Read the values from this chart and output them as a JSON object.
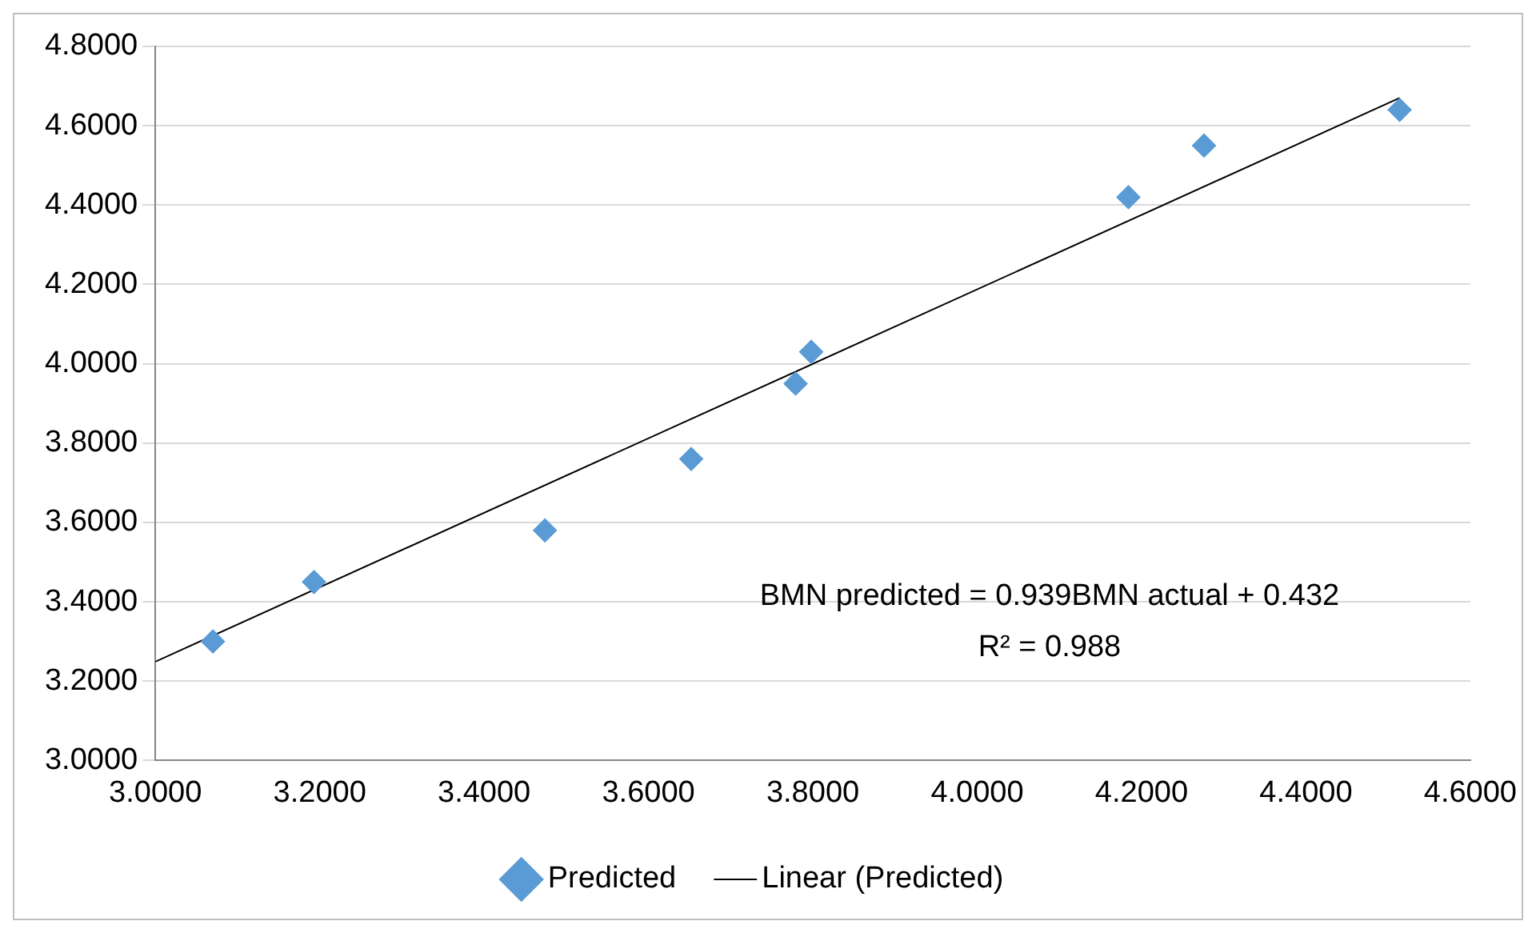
{
  "chart_data": {
    "type": "scatter",
    "x": [
      3.07,
      3.193,
      3.474,
      3.652,
      3.779,
      3.798,
      4.184,
      4.276,
      4.514
    ],
    "series": [
      {
        "name": "Predicted",
        "color": "#5b9bd5",
        "marker": "diamond",
        "values": [
          3.3,
          3.45,
          3.58,
          3.76,
          3.95,
          4.03,
          4.42,
          4.55,
          4.64
        ]
      },
      {
        "name": "Linear (Predicted)",
        "type": "line",
        "color": "#000000",
        "marker": "none",
        "line_style": "solid",
        "x": [
          3.0,
          4.514
        ],
        "values": [
          3.249,
          4.67
        ]
      }
    ],
    "xlim": [
      3.0,
      4.6
    ],
    "xticks": [
      {
        "value": 3.0,
        "label": "3.0000"
      },
      {
        "value": 3.2,
        "label": "3.2000"
      },
      {
        "value": 3.4,
        "label": "3.4000"
      },
      {
        "value": 3.6,
        "label": "3.6000"
      },
      {
        "value": 3.8,
        "label": "3.8000"
      },
      {
        "value": 4.0,
        "label": "4.0000"
      },
      {
        "value": 4.2,
        "label": "4.2000"
      },
      {
        "value": 4.4,
        "label": "4.4000"
      },
      {
        "value": 4.6,
        "label": "4.6000"
      }
    ],
    "ylim": [
      3.0,
      4.8
    ],
    "yticks": [
      {
        "value": 3.0,
        "label": "3.0000"
      },
      {
        "value": 3.2,
        "label": "3.2000"
      },
      {
        "value": 3.4,
        "label": "3.4000"
      },
      {
        "value": 3.6,
        "label": "3.6000"
      },
      {
        "value": 3.8,
        "label": "3.8000"
      },
      {
        "value": 4.0,
        "label": "4.0000"
      },
      {
        "value": 4.2,
        "label": "4.2000"
      },
      {
        "value": 4.4,
        "label": "4.4000"
      },
      {
        "value": 4.6,
        "label": "4.6000"
      },
      {
        "value": 4.8,
        "label": "4.8000"
      }
    ],
    "grid": "y",
    "legend": "bottom",
    "annotations": [
      "BMN predicted = 0.939BMN actual + 0.432",
      "R² = 0.988"
    ]
  }
}
